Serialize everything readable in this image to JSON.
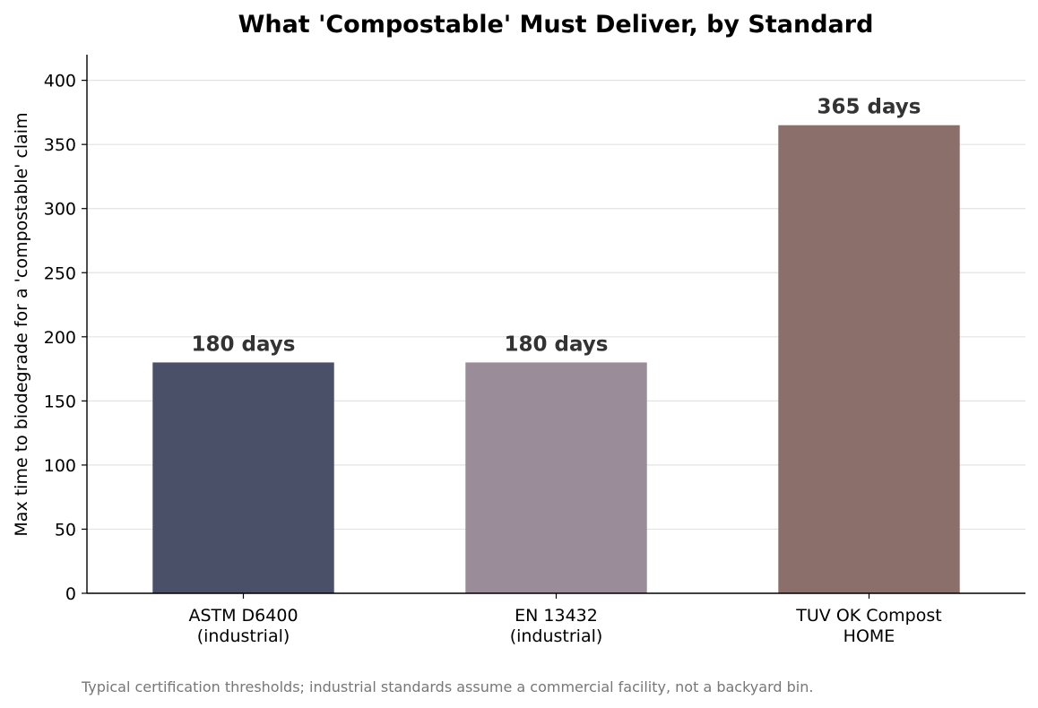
{
  "chart_data": {
    "type": "bar",
    "title": "What 'Compostable' Must Deliver, by Standard",
    "xlabel": "",
    "ylabel": "Max time to biodegrade for a 'compostable' claim",
    "ylim": [
      0,
      420
    ],
    "yticks": [
      0,
      50,
      100,
      150,
      200,
      250,
      300,
      350,
      400
    ],
    "grid": "y",
    "categories": [
      [
        "ASTM D6400",
        "(industrial)"
      ],
      [
        "EN 13432",
        "(industrial)"
      ],
      [
        "TUV OK Compost",
        "HOME"
      ]
    ],
    "values": [
      180,
      180,
      365
    ],
    "data_labels": [
      "180 days",
      "180 days",
      "365 days"
    ],
    "colors": [
      "#4b5069",
      "#9b8c9a",
      "#8a6f6b"
    ],
    "footnote": "Typical certification thresholds; industrial standards assume a commercial facility, not a backyard bin."
  }
}
